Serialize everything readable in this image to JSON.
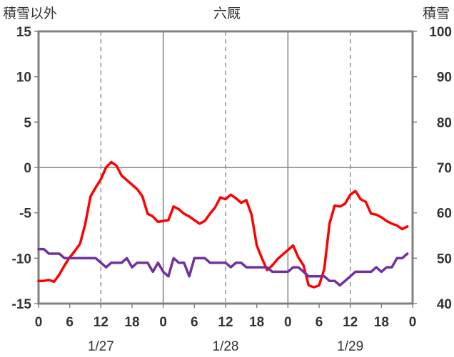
{
  "chart_data": {
    "type": "line",
    "title": "六厩",
    "ylabel_left": "積雪以外",
    "ylabel_right": "積雪",
    "y_left": {
      "min": -15,
      "max": 15,
      "ticks": [
        "15",
        "10",
        "5",
        "0",
        "-5",
        "-10",
        "-15"
      ]
    },
    "y_right": {
      "min": 40,
      "max": 100,
      "ticks": [
        "100",
        "90",
        "80",
        "70",
        "60",
        "50",
        "40"
      ]
    },
    "x": {
      "min": 0,
      "max": 72,
      "tick_step": 6,
      "tick_labels": [
        "0",
        "6",
        "12",
        "18",
        "0",
        "6",
        "12",
        "18",
        "0",
        "6",
        "12",
        "18",
        "0"
      ]
    },
    "dates": [
      "1/27",
      "1/28",
      "1/29"
    ],
    "grid": "dashed vertical at hours 12 and 36 and 60; solid at day boundaries; solid horizontal at 0",
    "series": [
      {
        "axis": "left",
        "color": "#ff0000",
        "x": [
          0,
          1,
          2,
          3,
          4,
          5,
          6,
          7,
          8,
          9,
          10,
          11,
          12,
          13,
          14,
          15,
          16,
          17,
          18,
          19,
          20,
          21,
          22,
          23,
          24,
          25,
          26,
          27,
          28,
          29,
          30,
          31,
          32,
          33,
          34,
          35,
          36,
          37,
          38,
          39,
          40,
          41,
          42,
          43,
          44,
          45,
          46,
          47,
          48,
          49,
          50,
          51,
          52,
          53,
          54,
          55,
          56,
          57,
          58,
          59,
          60,
          61,
          62,
          63,
          64,
          65,
          66,
          67,
          68,
          69,
          70,
          71
        ],
        "values": [
          -12.5,
          -12.5,
          -12.4,
          -12.6,
          -11.8,
          -10.8,
          -9.9,
          -9.2,
          -8.4,
          -6.2,
          -3.2,
          -2.2,
          -1.3,
          0.0,
          0.6,
          0.2,
          -0.9,
          -1.4,
          -1.9,
          -2.4,
          -3.2,
          -5.1,
          -5.4,
          -6.0,
          -5.9,
          -5.8,
          -4.3,
          -4.6,
          -5.1,
          -5.4,
          -5.8,
          -6.2,
          -5.9,
          -5.1,
          -4.4,
          -3.3,
          -3.5,
          -3.0,
          -3.4,
          -3.9,
          -3.6,
          -5.2,
          -8.6,
          -10.0,
          -11.3,
          -10.8,
          -10.1,
          -9.6,
          -9.1,
          -8.6,
          -9.9,
          -10.8,
          -13.0,
          -13.2,
          -13.0,
          -11.2,
          -6.2,
          -4.2,
          -4.3,
          -4.0,
          -3.0,
          -2.6,
          -3.5,
          -3.8,
          -5.1,
          -5.2,
          -5.5,
          -5.9,
          -6.2,
          -6.4,
          -6.8,
          -6.5
        ]
      },
      {
        "axis": "right",
        "color": "#7030a0",
        "x": [
          0,
          1,
          2,
          3,
          4,
          5,
          6,
          7,
          8,
          9,
          10,
          11,
          12,
          13,
          14,
          15,
          16,
          17,
          18,
          19,
          20,
          21,
          22,
          23,
          24,
          25,
          26,
          27,
          28,
          29,
          30,
          31,
          32,
          33,
          34,
          35,
          36,
          37,
          38,
          39,
          40,
          41,
          42,
          43,
          44,
          45,
          46,
          47,
          48,
          49,
          50,
          51,
          52,
          53,
          54,
          55,
          56,
          57,
          58,
          59,
          60,
          61,
          62,
          63,
          64,
          65,
          66,
          67,
          68,
          69,
          70,
          71
        ],
        "values": [
          52,
          52,
          51,
          51,
          51,
          50,
          50,
          50,
          50,
          50,
          50,
          50,
          49,
          48,
          49,
          49,
          49,
          50,
          48,
          49,
          49,
          49,
          47,
          49,
          47,
          46,
          50,
          49,
          49,
          46,
          50,
          50,
          50,
          49,
          49,
          49,
          49,
          48,
          49,
          49,
          48,
          48,
          48,
          48,
          48,
          47,
          47,
          47,
          47,
          48,
          48,
          47,
          46,
          46,
          46,
          46,
          45,
          45,
          44,
          45,
          46,
          47,
          47,
          47,
          47,
          48,
          47,
          48,
          48,
          50,
          50,
          51
        ]
      }
    ]
  }
}
